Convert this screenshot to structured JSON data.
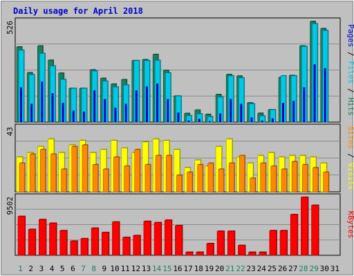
{
  "chart_data": [
    {
      "type": "bar",
      "title": "Daily usage for April 2018",
      "panel": "top",
      "ymax_label": "526",
      "ylim": [
        0,
        526
      ],
      "categories": [
        "1",
        "2",
        "3",
        "4",
        "5",
        "6",
        "7",
        "8",
        "9",
        "10",
        "11",
        "12",
        "13",
        "14",
        "15",
        "16",
        "17",
        "18",
        "19",
        "20",
        "21",
        "22",
        "23",
        "24",
        "25",
        "26",
        "27",
        "28",
        "29",
        "30",
        "31"
      ],
      "weekend_days": [
        "1",
        "7",
        "8",
        "14",
        "15",
        "21",
        "22",
        "28",
        "29"
      ],
      "legend_right": [
        "Pages",
        "Files",
        "Hits"
      ],
      "legend_separator": " / ",
      "series": [
        {
          "name": "Hits",
          "color": "#1b7f5e",
          "values": [
            390,
            256,
            395,
            321,
            254,
            175,
            175,
            271,
            227,
            197,
            220,
            319,
            324,
            351,
            268,
            135,
            45,
            62,
            40,
            143,
            247,
            239,
            100,
            46,
            64,
            232,
            242,
            395,
            522,
            485,
            0
          ]
        },
        {
          "name": "Files",
          "color": "#00c8e6",
          "values": [
            373,
            246,
            356,
            291,
            221,
            175,
            175,
            265,
            212,
            182,
            192,
            319,
            319,
            320,
            255,
            135,
            33,
            42,
            28,
            130,
            240,
            229,
            95,
            32,
            64,
            240,
            240,
            392,
            510,
            475,
            0
          ]
        },
        {
          "name": "Pages",
          "color": "#0000cc",
          "values": [
            180,
            95,
            210,
            150,
            100,
            60,
            55,
            165,
            120,
            75,
            95,
            165,
            185,
            200,
            120,
            50,
            8,
            18,
            5,
            45,
            120,
            95,
            25,
            8,
            20,
            100,
            110,
            180,
            300,
            280,
            0
          ]
        }
      ]
    },
    {
      "type": "bar",
      "panel": "middle",
      "ymax_label": "43",
      "ylim": [
        0,
        43
      ],
      "categories": [
        "1",
        "2",
        "3",
        "4",
        "5",
        "6",
        "7",
        "8",
        "9",
        "10",
        "11",
        "12",
        "13",
        "14",
        "15",
        "16",
        "17",
        "18",
        "19",
        "20",
        "21",
        "22",
        "23",
        "24",
        "25",
        "26",
        "27",
        "28",
        "29",
        "30",
        "31"
      ],
      "legend_right": [
        "Sites",
        "Visits"
      ],
      "legend_separator": " / ",
      "series": [
        {
          "name": "Visits",
          "color": "#ffff00",
          "values": [
            23,
            26,
            30,
            35,
            26,
            31,
            34,
            26,
            28,
            34,
            29,
            26,
            33,
            35,
            34,
            28,
            16,
            21,
            17,
            30,
            35,
            23,
            19,
            24,
            26,
            23,
            24,
            24,
            23,
            19,
            0
          ]
        },
        {
          "name": "Sites",
          "color": "#ff8800",
          "values": [
            19,
            25,
            28,
            25,
            15,
            30,
            31,
            18,
            15,
            23,
            17,
            28,
            18,
            24,
            24,
            11,
            13,
            18,
            19,
            15,
            19,
            24,
            9,
            19,
            17,
            15,
            20,
            18,
            16,
            13,
            0
          ]
        }
      ]
    },
    {
      "type": "bar",
      "panel": "bottom",
      "ymax_label": "9502",
      "ylim": [
        0,
        9502
      ],
      "categories": [
        "1",
        "2",
        "3",
        "4",
        "5",
        "6",
        "7",
        "8",
        "9",
        "10",
        "11",
        "12",
        "13",
        "14",
        "15",
        "16",
        "17",
        "18",
        "19",
        "20",
        "21",
        "22",
        "23",
        "24",
        "25",
        "26",
        "27",
        "28",
        "29",
        "30",
        "31"
      ],
      "legend_right": [
        "KBytes"
      ],
      "series": [
        {
          "name": "KBytes",
          "color": "#ff0000",
          "values": [
            6300,
            4200,
            5800,
            5200,
            4000,
            2300,
            2700,
            4400,
            3700,
            5400,
            2900,
            3200,
            5500,
            5300,
            5700,
            4800,
            500,
            500,
            1900,
            3900,
            3900,
            1600,
            500,
            500,
            4000,
            4000,
            6600,
            9400,
            8100,
            0,
            0
          ]
        }
      ]
    }
  ]
}
